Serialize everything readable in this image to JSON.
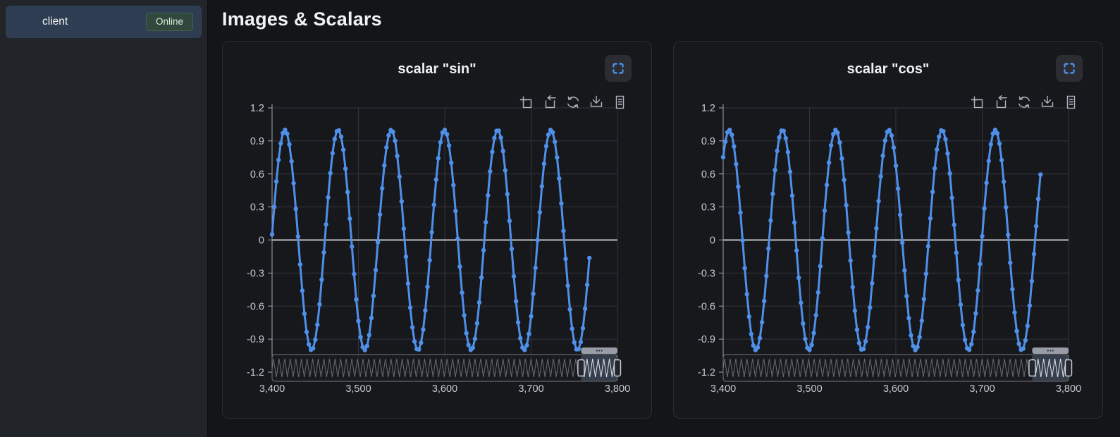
{
  "sidebar": {
    "client_label": "client",
    "status_label": "Online"
  },
  "header": {
    "title": "Images & Scalars"
  },
  "colors": {
    "line": "#4f90ea",
    "accent_blue": "#4f8fe8",
    "grid": "#33353b",
    "zero_line": "#dcdee3",
    "axis": "#a3a6b2",
    "tick_label": "#c6c9d2",
    "toolbar_icon": "#b2b6c2",
    "online_badge_bg": "#31483e",
    "online_badge_text": "#d6f0d8",
    "slider_border": "#75787f",
    "slider_fill": "rgba(28,30,35,0.55)",
    "slider_selection": "rgba(130,158,195,0.28)",
    "minimap_wave": "rgba(200,204,214,0.45)",
    "minimap_wave_bright": "rgba(235,240,250,0.85)",
    "handle_fill": "#24262c",
    "handle_border": "#ccd0d8",
    "move_bar": "#979ca7"
  },
  "toolbar_icons": [
    "data-zoom-icon",
    "zoom-reset-icon",
    "restore-icon",
    "save-image-icon",
    "data-view-icon"
  ],
  "chart_data": [
    {
      "type": "line",
      "title": "scalar \"sin\"",
      "xlabel": "",
      "ylabel": "",
      "xlim": [
        3400,
        3800
      ],
      "ylim": [
        -1.2,
        1.2
      ],
      "x_ticks": [
        "3,400",
        "3,500",
        "3,600",
        "3,700",
        "3,800"
      ],
      "x_tick_values": [
        3400,
        3500,
        3600,
        3700,
        3800
      ],
      "y_ticks": [
        "1.2",
        "0.9",
        "0.6",
        "0.3",
        "0",
        "-0.3",
        "-0.6",
        "-0.9",
        "-1.2"
      ],
      "y_tick_values": [
        1.2,
        0.9,
        0.6,
        0.3,
        0,
        -0.3,
        -0.6,
        -0.9,
        -1.2
      ],
      "grid": true,
      "legend": false,
      "series": [
        {
          "name": "sin",
          "function": "sin",
          "amplitude": 1,
          "period": 61.6,
          "phase": 0.05,
          "t_start": 3400,
          "t_end": 3768,
          "step": 2.5
        }
      ],
      "datazoom": {
        "full_range": [
          0,
          3800
        ],
        "window": [
          3400,
          3800
        ],
        "minimap_period": 61.6
      }
    },
    {
      "type": "line",
      "title": "scalar \"cos\"",
      "xlabel": "",
      "ylabel": "",
      "xlim": [
        3400,
        3800
      ],
      "ylim": [
        -1.2,
        1.2
      ],
      "x_ticks": [
        "3,400",
        "3,500",
        "3,600",
        "3,700",
        "3,800"
      ],
      "x_tick_values": [
        3400,
        3500,
        3600,
        3700,
        3800
      ],
      "y_ticks": [
        "1.2",
        "0.9",
        "0.6",
        "0.3",
        "0",
        "-0.3",
        "-0.6",
        "-0.9",
        "-1.2"
      ],
      "y_tick_values": [
        1.2,
        0.9,
        0.6,
        0.3,
        0,
        -0.3,
        -0.6,
        -0.9,
        -1.2
      ],
      "grid": true,
      "legend": false,
      "series": [
        {
          "name": "cos",
          "function": "cos",
          "amplitude": 1,
          "period": 61.6,
          "phase": -0.72,
          "t_start": 3400,
          "t_end": 3768,
          "step": 2.5
        }
      ],
      "datazoom": {
        "full_range": [
          0,
          3800
        ],
        "window": [
          3400,
          3800
        ],
        "minimap_period": 61.6
      }
    }
  ]
}
